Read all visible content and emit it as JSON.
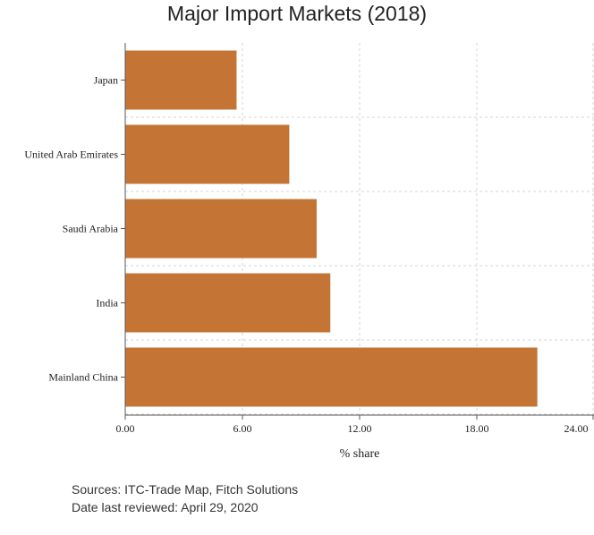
{
  "chart_data": {
    "type": "bar",
    "orientation": "horizontal",
    "title": "Major Import Markets (2018)",
    "xlabel": "% share",
    "ylabel": "",
    "categories": [
      "Japan",
      "United Arab Emirates",
      "Saudi Arabia",
      "India",
      "Mainland China"
    ],
    "values": [
      5.7,
      8.4,
      9.8,
      10.5,
      21.1
    ],
    "xlim": [
      0,
      24
    ],
    "xticks": [
      "0.00",
      "6.00",
      "12.00",
      "18.00",
      "24.00"
    ],
    "grid": true,
    "bar_color": "#C47535"
  },
  "footer": {
    "sources": "Sources: ITC-Trade Map, Fitch Solutions",
    "reviewed": "Date last reviewed: April 29, 2020"
  }
}
